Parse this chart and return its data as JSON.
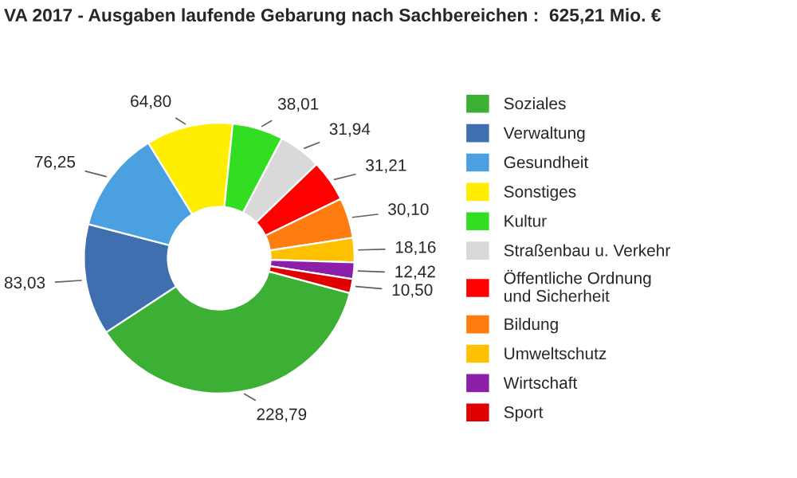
{
  "chart_data": {
    "type": "donut",
    "title": "VA 2017 - Ausgaben laufende Gebarung nach Sachbereichen :  625,21 Mio. €",
    "categories": [
      "Soziales",
      "Verwaltung",
      "Gesundheit",
      "Sonstiges",
      "Kultur",
      "Straßenbau u. Verkehr",
      "Öffentliche Ordnung\nund Sicherheit",
      "Bildung",
      "Umweltschutz",
      "Wirtschaft",
      "Sport"
    ],
    "values": [
      228.79,
      83.03,
      76.25,
      64.8,
      38.01,
      31.94,
      31.21,
      30.1,
      18.16,
      12.42,
      10.5
    ],
    "value_labels": [
      "228,79",
      "83,03",
      "76,25",
      "64,80",
      "38,01",
      "31,94",
      "31,21",
      "30,10",
      "18,16",
      "12,42",
      "10,50"
    ],
    "colors": [
      "#3cb034",
      "#3f6faf",
      "#4aa0e0",
      "#ffee00",
      "#33dd22",
      "#d9d9d9",
      "#ff0000",
      "#ff7d10",
      "#ffc000",
      "#8b1fa8",
      "#e00000"
    ],
    "legend": "right"
  }
}
